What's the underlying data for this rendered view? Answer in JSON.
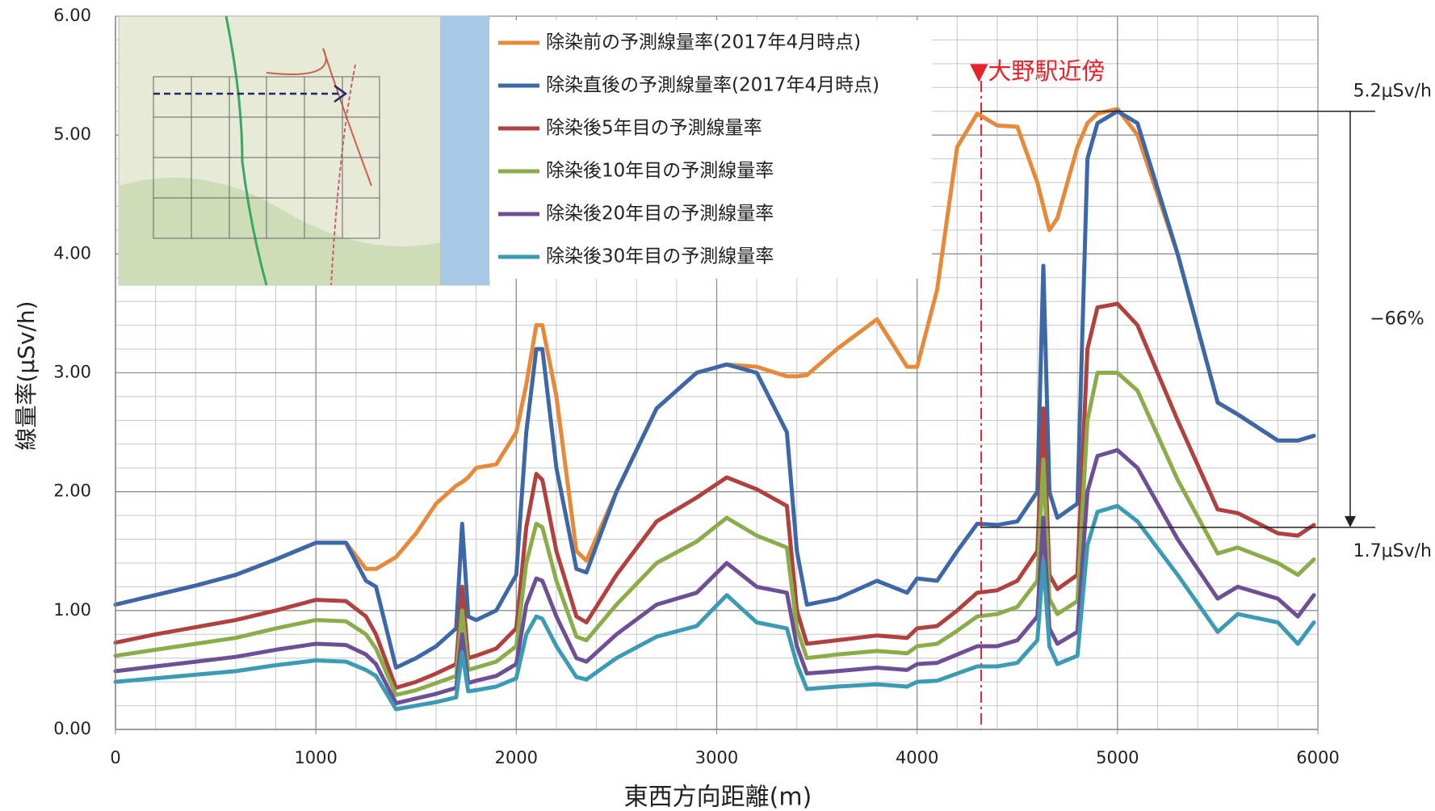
{
  "chart_data": {
    "type": "line",
    "x_label": "東西方向距離(m)",
    "y_label": "線量率(μSv/h)",
    "xlim": [
      0,
      6000
    ],
    "xticks": [
      0,
      1000,
      2000,
      3000,
      4000,
      5000,
      6000
    ],
    "ylim": [
      0,
      6
    ],
    "yticks": [
      {
        "value": 0,
        "label": "0.00"
      },
      {
        "value": 1,
        "label": "1.00"
      },
      {
        "value": 2,
        "label": "2.00"
      },
      {
        "value": 3,
        "label": "3.00"
      },
      {
        "value": 4,
        "label": "4.00"
      },
      {
        "value": 5,
        "label": "5.00"
      },
      {
        "value": 6,
        "label": "6.00"
      }
    ],
    "grid": true,
    "minor_grid": {
      "x": 200,
      "y": 0.2
    },
    "x": [
      0,
      200,
      400,
      600,
      800,
      1000,
      1150,
      1250,
      1300,
      1400,
      1500,
      1600,
      1700,
      1730,
      1760,
      1800,
      1900,
      2000,
      2050,
      2100,
      2130,
      2200,
      2300,
      2350,
      2500,
      2700,
      2900,
      3050,
      3200,
      3350,
      3400,
      3450,
      3600,
      3800,
      3950,
      4000,
      4100,
      4200,
      4300,
      4400,
      4500,
      4600,
      4630,
      4660,
      4700,
      4800,
      4850,
      4900,
      5000,
      5100,
      5300,
      5500,
      5600,
      5800,
      5900,
      5980
    ],
    "series": [
      {
        "name": "除染前の予測線量率(2017年4月時点)",
        "color": "#e8893a",
        "values": [
          1.05,
          1.13,
          1.21,
          1.3,
          1.43,
          1.57,
          1.57,
          1.35,
          1.35,
          1.45,
          1.65,
          1.9,
          2.05,
          2.08,
          2.12,
          2.2,
          2.23,
          2.5,
          2.9,
          3.4,
          3.4,
          2.8,
          1.5,
          1.42,
          2.0,
          2.7,
          3.0,
          3.07,
          3.05,
          2.97,
          2.97,
          2.98,
          3.2,
          3.45,
          3.05,
          3.05,
          3.7,
          4.9,
          5.18,
          5.08,
          5.07,
          4.6,
          4.4,
          4.2,
          4.3,
          4.9,
          5.1,
          5.18,
          5.22,
          5.0,
          4.0,
          2.75,
          2.65,
          2.43,
          2.43,
          2.47
        ]
      },
      {
        "name": "除染直後の予測線量率(2017年4月時点)",
        "color": "#3d68a8",
        "values": [
          1.05,
          1.13,
          1.21,
          1.3,
          1.43,
          1.57,
          1.57,
          1.25,
          1.2,
          0.52,
          0.6,
          0.7,
          0.85,
          1.73,
          0.95,
          0.92,
          1.0,
          1.3,
          2.5,
          3.2,
          3.2,
          2.2,
          1.35,
          1.32,
          2.0,
          2.7,
          3.0,
          3.07,
          3.0,
          2.5,
          1.5,
          1.05,
          1.1,
          1.25,
          1.15,
          1.27,
          1.25,
          1.5,
          1.73,
          1.72,
          1.75,
          2.0,
          3.9,
          2.0,
          1.78,
          1.9,
          4.8,
          5.1,
          5.2,
          5.1,
          4.0,
          2.75,
          2.65,
          2.43,
          2.43,
          2.47
        ]
      },
      {
        "name": "除染後5年目の予測線量率",
        "color": "#b0413e",
        "values": [
          0.73,
          0.8,
          0.86,
          0.92,
          1.0,
          1.09,
          1.08,
          0.95,
          0.8,
          0.35,
          0.4,
          0.47,
          0.55,
          1.2,
          0.6,
          0.62,
          0.68,
          0.85,
          1.7,
          2.15,
          2.1,
          1.5,
          0.95,
          0.9,
          1.3,
          1.75,
          1.95,
          2.12,
          2.02,
          1.88,
          1.0,
          0.72,
          0.75,
          0.79,
          0.77,
          0.85,
          0.87,
          1.0,
          1.15,
          1.17,
          1.25,
          1.5,
          2.7,
          1.3,
          1.18,
          1.3,
          3.2,
          3.55,
          3.58,
          3.4,
          2.6,
          1.85,
          1.82,
          1.65,
          1.63,
          1.72
        ]
      },
      {
        "name": "除染後10年目の予測線量率",
        "color": "#8aad4a",
        "values": [
          0.62,
          0.67,
          0.72,
          0.77,
          0.85,
          0.92,
          0.91,
          0.8,
          0.68,
          0.29,
          0.33,
          0.39,
          0.45,
          1.0,
          0.5,
          0.52,
          0.57,
          0.7,
          1.4,
          1.73,
          1.7,
          1.25,
          0.78,
          0.75,
          1.05,
          1.4,
          1.58,
          1.78,
          1.63,
          1.53,
          0.85,
          0.6,
          0.63,
          0.66,
          0.64,
          0.7,
          0.72,
          0.83,
          0.95,
          0.97,
          1.03,
          1.25,
          2.27,
          1.1,
          0.97,
          1.08,
          2.6,
          3.0,
          3.0,
          2.85,
          2.1,
          1.48,
          1.53,
          1.4,
          1.3,
          1.43
        ]
      },
      {
        "name": "除染後20年目の予測線量率",
        "color": "#6e4f96",
        "values": [
          0.49,
          0.53,
          0.57,
          0.61,
          0.67,
          0.72,
          0.71,
          0.63,
          0.55,
          0.22,
          0.26,
          0.3,
          0.35,
          0.8,
          0.39,
          0.41,
          0.45,
          0.55,
          1.05,
          1.27,
          1.25,
          0.95,
          0.6,
          0.57,
          0.8,
          1.05,
          1.15,
          1.4,
          1.2,
          1.15,
          0.7,
          0.47,
          0.49,
          0.52,
          0.5,
          0.55,
          0.56,
          0.63,
          0.7,
          0.7,
          0.75,
          0.95,
          1.78,
          0.85,
          0.72,
          0.82,
          2.0,
          2.3,
          2.35,
          2.2,
          1.6,
          1.1,
          1.2,
          1.1,
          0.95,
          1.13
        ]
      },
      {
        "name": "除染後30年目の予測線量率",
        "color": "#3c9bb4",
        "values": [
          0.4,
          0.43,
          0.46,
          0.49,
          0.54,
          0.58,
          0.57,
          0.5,
          0.45,
          0.17,
          0.2,
          0.23,
          0.27,
          0.65,
          0.32,
          0.33,
          0.36,
          0.43,
          0.8,
          0.95,
          0.93,
          0.7,
          0.44,
          0.42,
          0.6,
          0.78,
          0.87,
          1.13,
          0.9,
          0.85,
          0.55,
          0.34,
          0.36,
          0.38,
          0.36,
          0.4,
          0.41,
          0.47,
          0.53,
          0.53,
          0.56,
          0.75,
          1.42,
          0.7,
          0.55,
          0.62,
          1.55,
          1.83,
          1.88,
          1.75,
          1.3,
          0.82,
          0.97,
          0.9,
          0.72,
          0.9
        ]
      }
    ],
    "annotations": {
      "station": {
        "text": "▼大野駅近傍",
        "x": 4320,
        "color": "#e8212a"
      },
      "high": {
        "text": "5.2μSv/h",
        "y": 5.2
      },
      "low": {
        "text": "1.7μSv/h",
        "y": 1.7
      },
      "reduction": "−66%"
    }
  }
}
